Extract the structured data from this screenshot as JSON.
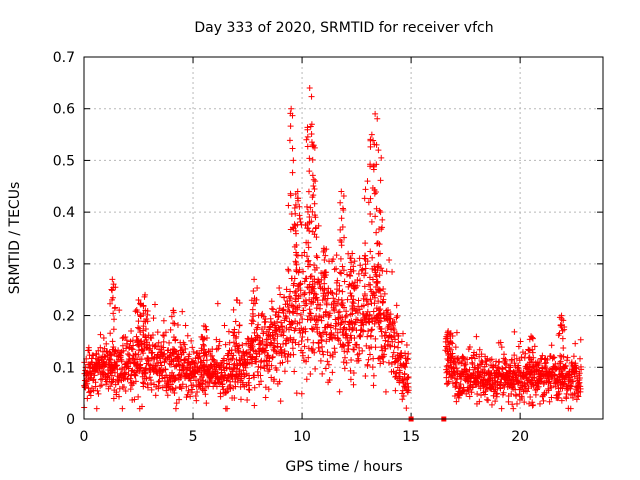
{
  "chart_data": {
    "type": "scatter",
    "title": "Day 333 of 2020, SRMTID for receiver vfch",
    "xlabel": "GPS time / hours",
    "ylabel": "SRMTID / TECUs",
    "xlim": [
      0,
      23.8
    ],
    "ylim": [
      0,
      0.7
    ],
    "x_ticks": [
      0,
      5,
      10,
      15,
      20
    ],
    "x_tick_labels": [
      "0",
      "5",
      "10",
      "15",
      "20"
    ],
    "y_ticks": [
      0,
      0.1,
      0.2,
      0.3,
      0.4,
      0.5,
      0.6,
      0.7
    ],
    "y_tick_labels": [
      "0",
      "0.1",
      "0.2",
      "0.3",
      "0.4",
      "0.5",
      "0.6",
      "0.7"
    ],
    "grid": true,
    "marker": "+",
    "color": "#ff0000",
    "gap_hours": [
      15.0,
      16.5
    ],
    "series": [
      {
        "name": "SRMTID",
        "profile": [
          {
            "x": 0.0,
            "y": 0.09
          },
          {
            "x": 1.0,
            "y": 0.1
          },
          {
            "x": 2.0,
            "y": 0.1
          },
          {
            "x": 3.0,
            "y": 0.11
          },
          {
            "x": 4.0,
            "y": 0.1
          },
          {
            "x": 5.0,
            "y": 0.09
          },
          {
            "x": 6.0,
            "y": 0.09
          },
          {
            "x": 7.0,
            "y": 0.1
          },
          {
            "x": 8.0,
            "y": 0.13
          },
          {
            "x": 9.0,
            "y": 0.15
          },
          {
            "x": 9.5,
            "y": 0.2
          },
          {
            "x": 10.0,
            "y": 0.22
          },
          {
            "x": 11.0,
            "y": 0.2
          },
          {
            "x": 12.0,
            "y": 0.18
          },
          {
            "x": 13.0,
            "y": 0.19
          },
          {
            "x": 13.5,
            "y": 0.2
          },
          {
            "x": 14.0,
            "y": 0.16
          },
          {
            "x": 14.5,
            "y": 0.11
          },
          {
            "x": 14.9,
            "y": 0.08
          },
          {
            "x": 16.6,
            "y": 0.12
          },
          {
            "x": 17.0,
            "y": 0.09
          },
          {
            "x": 18.0,
            "y": 0.08
          },
          {
            "x": 19.0,
            "y": 0.08
          },
          {
            "x": 20.0,
            "y": 0.08
          },
          {
            "x": 21.0,
            "y": 0.08
          },
          {
            "x": 22.0,
            "y": 0.08
          },
          {
            "x": 22.8,
            "y": 0.08
          }
        ],
        "peaks": [
          {
            "x": 1.3,
            "y": 0.27
          },
          {
            "x": 2.5,
            "y": 0.23
          },
          {
            "x": 2.8,
            "y": 0.24
          },
          {
            "x": 4.1,
            "y": 0.21
          },
          {
            "x": 5.5,
            "y": 0.18
          },
          {
            "x": 7.0,
            "y": 0.23
          },
          {
            "x": 7.8,
            "y": 0.27
          },
          {
            "x": 9.5,
            "y": 0.6
          },
          {
            "x": 9.6,
            "y": 0.5
          },
          {
            "x": 9.8,
            "y": 0.44
          },
          {
            "x": 10.2,
            "y": 0.54
          },
          {
            "x": 10.35,
            "y": 0.64
          },
          {
            "x": 10.45,
            "y": 0.57
          },
          {
            "x": 10.6,
            "y": 0.46
          },
          {
            "x": 11.0,
            "y": 0.33
          },
          {
            "x": 11.8,
            "y": 0.44
          },
          {
            "x": 12.3,
            "y": 0.32
          },
          {
            "x": 13.0,
            "y": 0.46
          },
          {
            "x": 13.2,
            "y": 0.55
          },
          {
            "x": 13.35,
            "y": 0.59
          },
          {
            "x": 13.5,
            "y": 0.52
          },
          {
            "x": 13.6,
            "y": 0.4
          },
          {
            "x": 16.7,
            "y": 0.17
          },
          {
            "x": 20.5,
            "y": 0.16
          },
          {
            "x": 21.9,
            "y": 0.2
          }
        ],
        "zero_markers": [
          {
            "x": 15.0,
            "y": 0
          },
          {
            "x": 16.5,
            "y": 0
          }
        ]
      }
    ]
  }
}
